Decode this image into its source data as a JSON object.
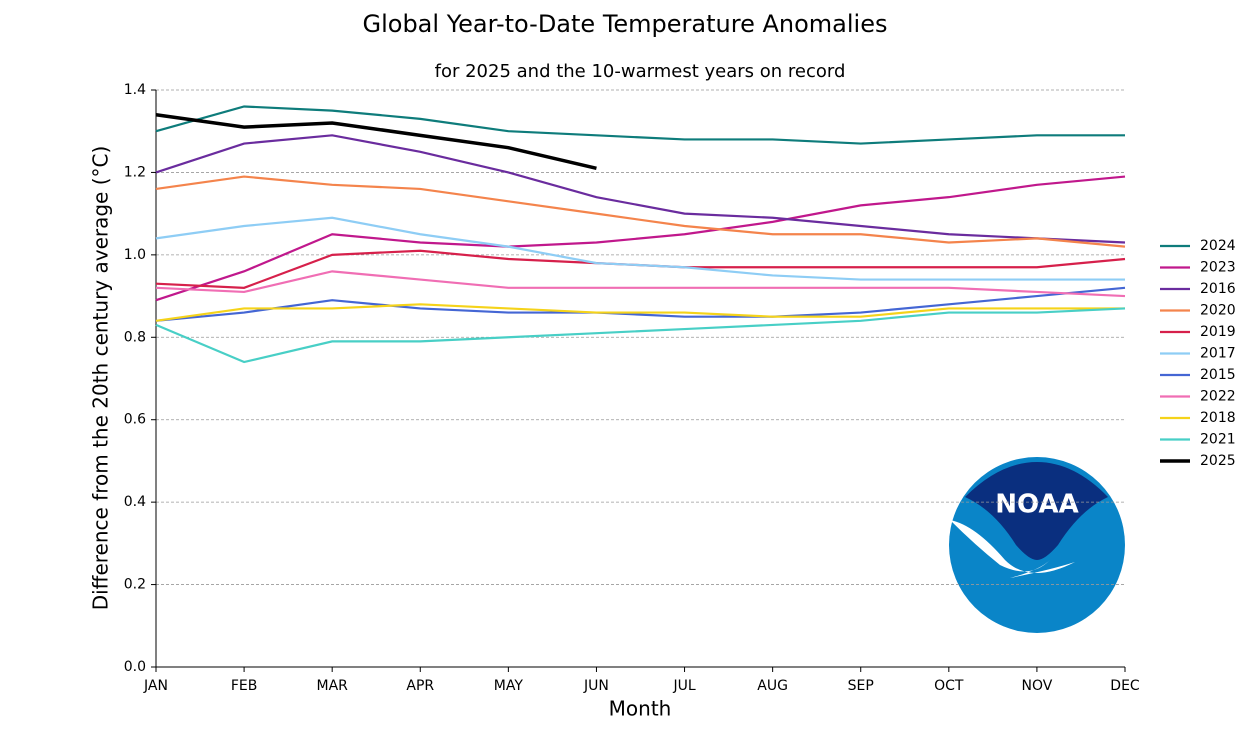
{
  "chart_data": {
    "type": "line",
    "title": "Global Year-to-Date Temperature Anomalies",
    "subtitle": "for 2025 and the 10-warmest years on record",
    "xlabel": "Month",
    "ylabel": "Difference from the 20th century average (°C)",
    "logo": "NOAA",
    "categories": [
      "JAN",
      "FEB",
      "MAR",
      "APR",
      "MAY",
      "JUN",
      "JUL",
      "AUG",
      "SEP",
      "OCT",
      "NOV",
      "DEC"
    ],
    "ylim": [
      0,
      1.4
    ],
    "yticks": [
      {
        "value": 0,
        "label": "0.0"
      },
      0.2,
      0.4,
      0.6,
      0.8,
      {
        "value": 1,
        "label": "1.0"
      },
      1.2,
      1.4
    ],
    "grid": true,
    "legend": "right",
    "series": [
      {
        "name": "2024",
        "color": "#0e7c7b",
        "values": [
          1.3,
          1.36,
          1.35,
          1.33,
          1.3,
          1.29,
          1.28,
          1.28,
          1.27,
          1.28,
          1.29,
          1.29
        ]
      },
      {
        "name": "2023",
        "color": "#c0188c",
        "values": [
          0.89,
          0.96,
          1.05,
          1.03,
          1.02,
          1.03,
          1.05,
          1.08,
          1.12,
          1.14,
          1.17,
          1.19
        ]
      },
      {
        "name": "2016",
        "color": "#6a2c9e",
        "values": [
          1.2,
          1.27,
          1.29,
          1.25,
          1.2,
          1.14,
          1.1,
          1.09,
          1.07,
          1.05,
          1.04,
          1.03
        ]
      },
      {
        "name": "2020",
        "color": "#f4844c",
        "values": [
          1.16,
          1.19,
          1.17,
          1.16,
          1.13,
          1.1,
          1.07,
          1.05,
          1.05,
          1.03,
          1.04,
          1.02
        ]
      },
      {
        "name": "2019",
        "color": "#d6204b",
        "values": [
          0.93,
          0.92,
          1.0,
          1.01,
          0.99,
          0.98,
          0.97,
          0.97,
          0.97,
          0.97,
          0.97,
          0.99
        ]
      },
      {
        "name": "2017",
        "color": "#8ecdf5",
        "values": [
          1.04,
          1.07,
          1.09,
          1.05,
          1.02,
          0.98,
          0.97,
          0.95,
          0.94,
          0.94,
          0.94,
          0.94
        ]
      },
      {
        "name": "2015",
        "color": "#4466d4",
        "values": [
          0.84,
          0.86,
          0.89,
          0.87,
          0.86,
          0.86,
          0.85,
          0.85,
          0.86,
          0.88,
          0.9,
          0.92
        ]
      },
      {
        "name": "2022",
        "color": "#f06eb4",
        "values": [
          0.92,
          0.91,
          0.96,
          0.94,
          0.92,
          0.92,
          0.92,
          0.92,
          0.92,
          0.92,
          0.91,
          0.9
        ]
      },
      {
        "name": "2018",
        "color": "#f5d31a",
        "values": [
          0.84,
          0.87,
          0.87,
          0.88,
          0.87,
          0.86,
          0.86,
          0.85,
          0.85,
          0.87,
          0.87,
          0.87
        ]
      },
      {
        "name": "2021",
        "color": "#48cfc6",
        "values": [
          0.83,
          0.74,
          0.79,
          0.79,
          0.8,
          0.81,
          0.82,
          0.83,
          0.84,
          0.86,
          0.86,
          0.87
        ]
      },
      {
        "name": "2025",
        "color": "#000000",
        "values": [
          1.34,
          1.31,
          1.32,
          1.29,
          1.26,
          1.21,
          null,
          null,
          null,
          null,
          null,
          null
        ]
      }
    ]
  }
}
